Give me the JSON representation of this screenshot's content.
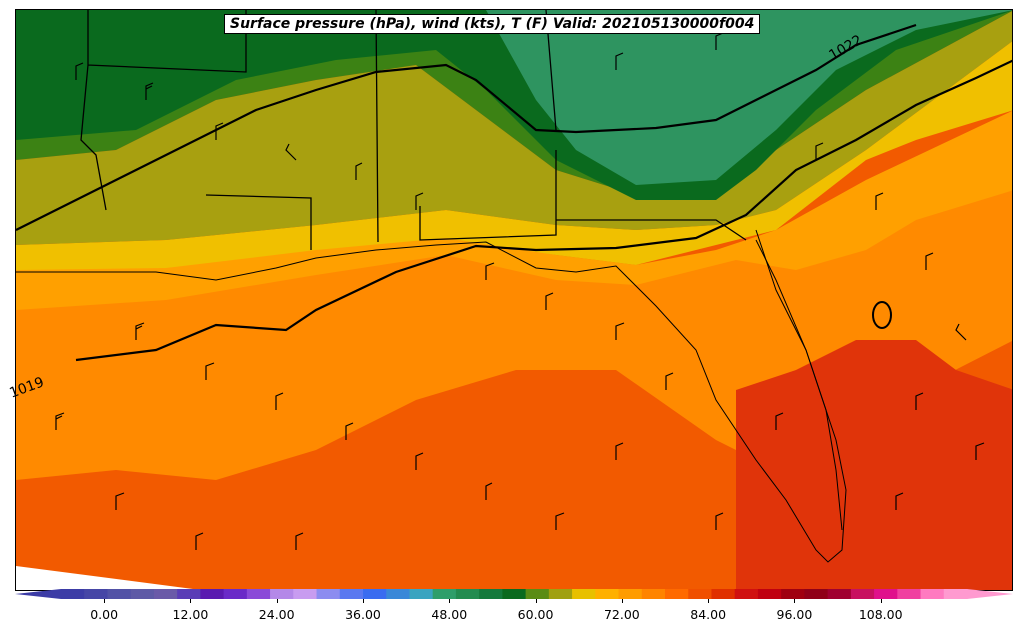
{
  "title": "Surface pressure (hPa), wind (kts), T (F) Valid: 202105130000f004",
  "isobars": [
    {
      "label": "1022"
    },
    {
      "label": "1019"
    }
  ],
  "colorbar": {
    "ticks": [
      "0.00",
      "12.00",
      "24.00",
      "36.00",
      "48.00",
      "60.00",
      "72.00",
      "84.00",
      "96.00",
      "108.00"
    ],
    "range": [
      -6,
      120
    ],
    "colors": [
      "#3c3ca6",
      "#4646a6",
      "#5252a6",
      "#5e5aa6",
      "#6a5aa8",
      "#5a3db6",
      "#5a1ab0",
      "#6a2ac8",
      "#8a4ad8",
      "#b488e8",
      "#c89cf0",
      "#8c8cf0",
      "#5a78f0",
      "#3a6cf0",
      "#3a88d8",
      "#3aa4c0",
      "#2e9e6a",
      "#228c50",
      "#147a3c",
      "#0a6a1e",
      "#5a8c14",
      "#a0a010",
      "#e8c000",
      "#ffb000",
      "#ff9c00",
      "#ff8400",
      "#ff6a00",
      "#f05000",
      "#e03000",
      "#d01010",
      "#c00010",
      "#a00010",
      "#900018",
      "#a00030",
      "#c81060",
      "#e0108c",
      "#f040a0",
      "#ff7ac0",
      "#ff9ad0"
    ]
  }
}
